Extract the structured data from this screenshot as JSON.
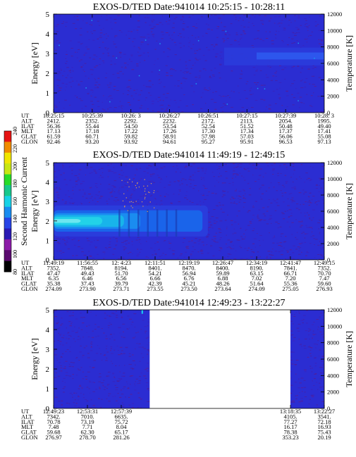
{
  "colorbar": {
    "label": "Second Harmonic Current",
    "ticks": [
      "80",
      "100",
      "120",
      "140",
      "160",
      "180",
      "200",
      "220",
      "240"
    ],
    "colors": [
      "#000000",
      "#5a0a6e",
      "#8c1ca8",
      "#2a1ab4",
      "#2844e6",
      "#1a8cf0",
      "#18d2e6",
      "#18c88c",
      "#28dc28",
      "#c8e614",
      "#f0e600",
      "#f08c00",
      "#e61414"
    ]
  },
  "panels_layout_note": "three stacked spectrogram panels",
  "chart_data": [
    {
      "type": "heatmap",
      "title": "EXOS-D/TED   Date:941014   10:25:15 - 10:28:11",
      "ylabel": "Energy [eV]",
      "y2label": "Temperature [K]",
      "ylim": [
        0,
        5
      ],
      "y2lim": [
        0,
        12000
      ],
      "yticks": [
        "0",
        "1",
        "2",
        "3",
        "4",
        "5"
      ],
      "y2ticks": [
        "0",
        "2000",
        "4000",
        "6000",
        "8000",
        "10000",
        "12000"
      ],
      "table": {
        "row_labels": [
          "UT",
          "ALT",
          "ILAT",
          "MLT",
          "GLAT",
          "GLON"
        ],
        "columns": [
          [
            "10:25:15",
            "2412.",
            "56.36",
            "17.13",
            "61.59",
            "92.46"
          ],
          [
            "10:25:39",
            "2352.",
            "55.44",
            "17.18",
            "60.71",
            "93.20"
          ],
          [
            "10:26: 3",
            "2292.",
            "54.50",
            "17.22",
            "59.82",
            "93.92"
          ],
          [
            "10:26:27",
            "2232.",
            "53.54",
            "17.26",
            "58.91",
            "94.61"
          ],
          [
            "10:26:51",
            "2172.",
            "52.54",
            "17.30",
            "57.98",
            "95.27"
          ],
          [
            "10:27:15",
            "2113.",
            "51.52",
            "17.34",
            "57.03",
            "95.91"
          ],
          [
            "10:27:39",
            "2054.",
            "50.48",
            "17.37",
            "56.06",
            "96.53"
          ],
          [
            "10:28: 3",
            "1995.",
            "49.40",
            "17.41",
            "55.08",
            "97.13"
          ]
        ]
      },
      "data_gap": null
    },
    {
      "type": "heatmap",
      "title": "EXOS-D/TED   Date:941014   11:49:19 - 12:49:15",
      "ylabel": "Energy [eV]",
      "y2label": "Temperature [K]",
      "ylim": [
        0,
        5
      ],
      "y2lim": [
        0,
        12000
      ],
      "yticks": [
        "0",
        "1",
        "2",
        "3",
        "4",
        "5"
      ],
      "y2ticks": [
        "0",
        "2000",
        "4000",
        "6000",
        "8000",
        "10000",
        "12000"
      ],
      "table": {
        "row_labels": [
          "UT",
          "ALT",
          "ILAT",
          "MLT",
          "GLAT",
          "GLON"
        ],
        "columns": [
          [
            "11:49:19",
            "7352.",
            "47.47",
            "6.35",
            "35.38",
            "274.09"
          ],
          [
            "11:56:55",
            "7848.",
            "49.43",
            "6.46",
            "37.43",
            "273.90"
          ],
          [
            "12: 4:23",
            "8194.",
            "51.70",
            "6.56",
            "39.79",
            "273.71"
          ],
          [
            "12:11:51",
            "8401.",
            "54.21",
            "6.66",
            "42.39",
            "273.55"
          ],
          [
            "12:19:19",
            "8470.",
            "56.94",
            "6.76",
            "45.21",
            "273.50"
          ],
          [
            "12:26:47",
            "8400.",
            "59.89",
            "6.88",
            "48.26",
            "273.64"
          ],
          [
            "12:34:19",
            "8190.",
            "63.15",
            "7.02",
            "51.64",
            "274.09"
          ],
          [
            "12:41:47",
            "7841.",
            "66.71",
            "7.20",
            "55.36",
            "275.05"
          ],
          [
            "12:49:15",
            "7352.",
            "70.70",
            "7.47",
            "59.60",
            "276.93"
          ]
        ]
      },
      "data_gap": null
    },
    {
      "type": "heatmap",
      "title": "EXOS-D/TED   Date:941014   12:49:23 - 13:22:27",
      "ylabel": "Energy [eV]",
      "y2label": "Temperature [K]",
      "ylim": [
        0,
        5
      ],
      "y2lim": [
        0,
        12000
      ],
      "yticks": [
        "0",
        "1",
        "2",
        "3",
        "4",
        "5"
      ],
      "y2ticks": [
        "0",
        "2000",
        "4000",
        "6000",
        "8000",
        "10000",
        "12000"
      ],
      "table": {
        "row_labels": [
          "UT",
          "ALT",
          "ILAT",
          "MLT",
          "GLAT",
          "GLON"
        ],
        "columns": [
          [
            "12:49:23",
            "7342.",
            "70.78",
            "7.48",
            "59.68",
            "276.97"
          ],
          [
            "12:53:31",
            "7010.",
            "73.19",
            "7.71",
            "62.30",
            "278.70"
          ],
          [
            "12:57:39",
            "6635.",
            "75.72",
            "8.04",
            "65.17",
            "281.26"
          ],
          [
            "",
            "",
            "",
            "",
            "",
            ""
          ],
          [
            "",
            "",
            "",
            "",
            "",
            ""
          ],
          [
            "",
            "",
            "",
            "",
            "",
            ""
          ],
          [
            "",
            "",
            "",
            "",
            "",
            ""
          ],
          [
            "13:18:35",
            "4105.",
            "77.27",
            "16.17",
            "78.38",
            "353.23"
          ],
          [
            "13:22:27",
            "3541.",
            "72.18",
            "16.93",
            "75.43",
            "20.19"
          ]
        ]
      },
      "data_gap": {
        "from": "12:59:41",
        "to": "13:18:35"
      }
    }
  ]
}
